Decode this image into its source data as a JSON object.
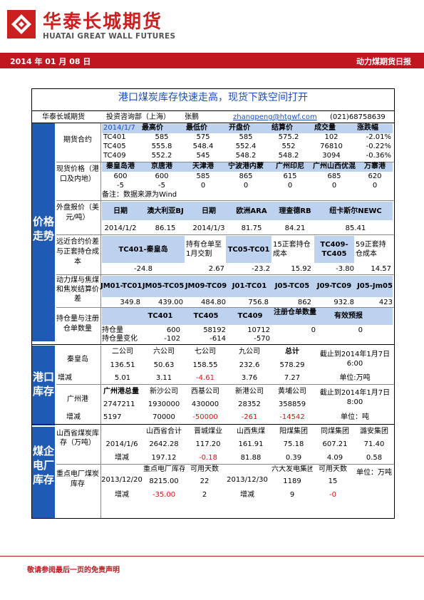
{
  "header": {
    "brand_cn": "华泰长城期货",
    "brand_en": "HUATAI GREAT WALL FUTURES",
    "date": "2014 年 01 月 08 日",
    "report_name": "动力煤期货日报",
    "brand_color": "#cc1f1f"
  },
  "doc": {
    "title": "港口煤炭库存快速走高，现货下跌空间打开",
    "author_line": {
      "company": "华泰长城期货",
      "dept": "投资咨询部（上海）",
      "analyst": "张鹏",
      "email": "zhangpeng@htgwf.com",
      "phone": "(021)68758639"
    },
    "sections": {
      "price": "价格走势",
      "port": "港口库存",
      "plant": "煤企电厂库存"
    },
    "futures": {
      "label": "期货合约",
      "headers": [
        "2014/1/7",
        "最高价",
        "最低价",
        "开盘价",
        "结算价",
        "成交量",
        "涨跌幅"
      ],
      "rows": [
        [
          "TC401",
          "585",
          "575",
          "585",
          "575.2",
          "102",
          "-2.01%"
        ],
        [
          "TC405",
          "555.8",
          "548.4",
          "552.4",
          "552",
          "76810",
          "-0.22%"
        ],
        [
          "TC409",
          "552.2",
          "545",
          "548.2",
          "548.2",
          "3094",
          "-0.36%"
        ]
      ]
    },
    "spot": {
      "label": "现货价格（港口及内地）",
      "headers": [
        "秦皇岛港",
        "京唐港",
        "天津港",
        "宁波港内蒙",
        "广州印尼",
        "广州山西优混",
        "万寨港"
      ],
      "prices": [
        "600",
        "600",
        "585",
        "865",
        "615",
        "685",
        "620"
      ],
      "changes": [
        "-5",
        "-5",
        "0",
        "0",
        "0",
        "0",
        "0"
      ],
      "note": "备注：数据来源为Wind"
    },
    "external": {
      "label": "外盘报价（美元/吨）",
      "headers": [
        "日期",
        "澳大利亚BJ",
        "日期",
        "欧洲ARA",
        "理查德RB",
        "纽卡斯尔NEWC"
      ],
      "values": [
        "2014/1/2",
        "86.15",
        "2014/1/3",
        "81.75",
        "84.21",
        "85.41"
      ]
    },
    "spread": {
      "label": "远近合约价差与正套持仓成本",
      "headers": [
        "TC401-秦皇岛",
        "持有仓单至1月交割",
        "TC05-TC01",
        "15正套持仓成本",
        "TC409-TC405",
        "59正套持仓成本"
      ],
      "values": [
        "-24.8",
        "2.67",
        "-23.2",
        "15.92",
        "-3.80",
        "14.57"
      ]
    },
    "coking": {
      "label": "动力煤与焦煤和焦炭结算价差",
      "headers": [
        "JM01-TC01",
        "JM05-TC05",
        "JM09-TC09",
        "J01-TC01",
        "J05-TC05",
        "J09-TC09",
        "J05-Jm05"
      ],
      "values": [
        "349.8",
        "439.00",
        "484.80",
        "756.8",
        "862",
        "932.8",
        "423"
      ]
    },
    "oi": {
      "label": "持仓量与注册仓单数量",
      "headers": [
        "TC401",
        "TC405",
        "TC409",
        "注册仓单数量",
        "有效预报"
      ],
      "row1_label": "持仓量",
      "row1": [
        "600",
        "58192",
        "10712",
        "0",
        "0"
      ],
      "row2_label": "持仓量变化",
      "row2": [
        "-102",
        "-614",
        "-570"
      ]
    },
    "qhd": {
      "label": "秦皇岛",
      "headers": [
        "二公司",
        "六公司",
        "七公司",
        "九公司",
        "总计"
      ],
      "values": [
        "136.51",
        "50.63",
        "158.55",
        "232.6",
        "578.29"
      ],
      "change_label": "增减",
      "changes": [
        "5.01",
        "3.11",
        "-4.61",
        "3.76",
        "7.27"
      ],
      "asof": "截止到2014年1月7日 6:00",
      "unit": "单位:万吨"
    },
    "gz": {
      "label": "广州港",
      "headers": [
        "广州港总量",
        "新沙公司",
        "西基公司",
        "新港公司",
        "黄埔公司"
      ],
      "values": [
        "2747211",
        "1930000",
        "430000",
        "28352",
        "358859"
      ],
      "change_label": "增减",
      "changes": [
        "5197",
        "70000",
        "-50000",
        "-261",
        "-14542"
      ],
      "asof": "截止到2014年1月7日 8:00",
      "unit": "单位：吨"
    },
    "shanxi": {
      "label": "山西省煤炭库存（万吨）",
      "date": "2014/1/6",
      "change_label": "增减",
      "headers": [
        "山西省合计",
        "晋城煤业",
        "山西焦煤",
        "阳煤集团",
        "同煤集团",
        "潞安集团"
      ],
      "values": [
        "2642.28",
        "117.20",
        "161.91",
        "75.18",
        "607.21",
        "71.40"
      ],
      "changes": [
        "197.12",
        "-0.18",
        "81.88",
        "0.39",
        "4.09",
        "0.58"
      ]
    },
    "plant": {
      "label": "重点电厂煤炭库存",
      "date1": "2013/12/20",
      "h1": [
        "重点电厂库存",
        "可用天数"
      ],
      "v1": [
        "8215.00",
        "22"
      ],
      "c1": [
        "-35.00",
        "2"
      ],
      "date2": "2013/12/30",
      "h2": [
        "六大发电集团",
        "可用天数"
      ],
      "v2": [
        "1189",
        "15"
      ],
      "c2": [
        "9",
        "-0"
      ],
      "change_label": "增减",
      "unit": "单位：万吨"
    }
  },
  "footer": {
    "disclaimer": "敬请参阅最后一页的免责声明"
  }
}
